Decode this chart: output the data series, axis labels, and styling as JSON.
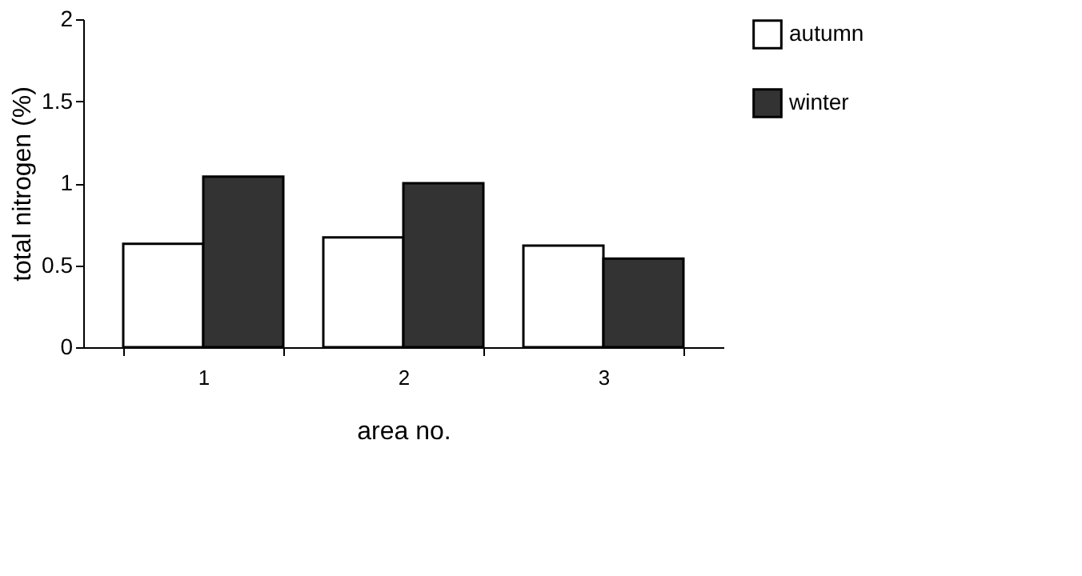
{
  "chart_data": {
    "type": "bar",
    "xlabel": "area no.",
    "ylabel": "total  nitrogen  (%)",
    "categories": [
      "1",
      "2",
      "3"
    ],
    "series": [
      {
        "name": "autumn",
        "color": "#ffffff",
        "values": [
          0.63,
          0.67,
          0.62
        ]
      },
      {
        "name": "winter",
        "color": "#333333",
        "values": [
          1.04,
          1.0,
          0.54
        ]
      }
    ],
    "ylim": [
      0,
      2
    ],
    "yticks": [
      0,
      0.5,
      1,
      1.5,
      2
    ],
    "grid": false,
    "legend": "right"
  }
}
